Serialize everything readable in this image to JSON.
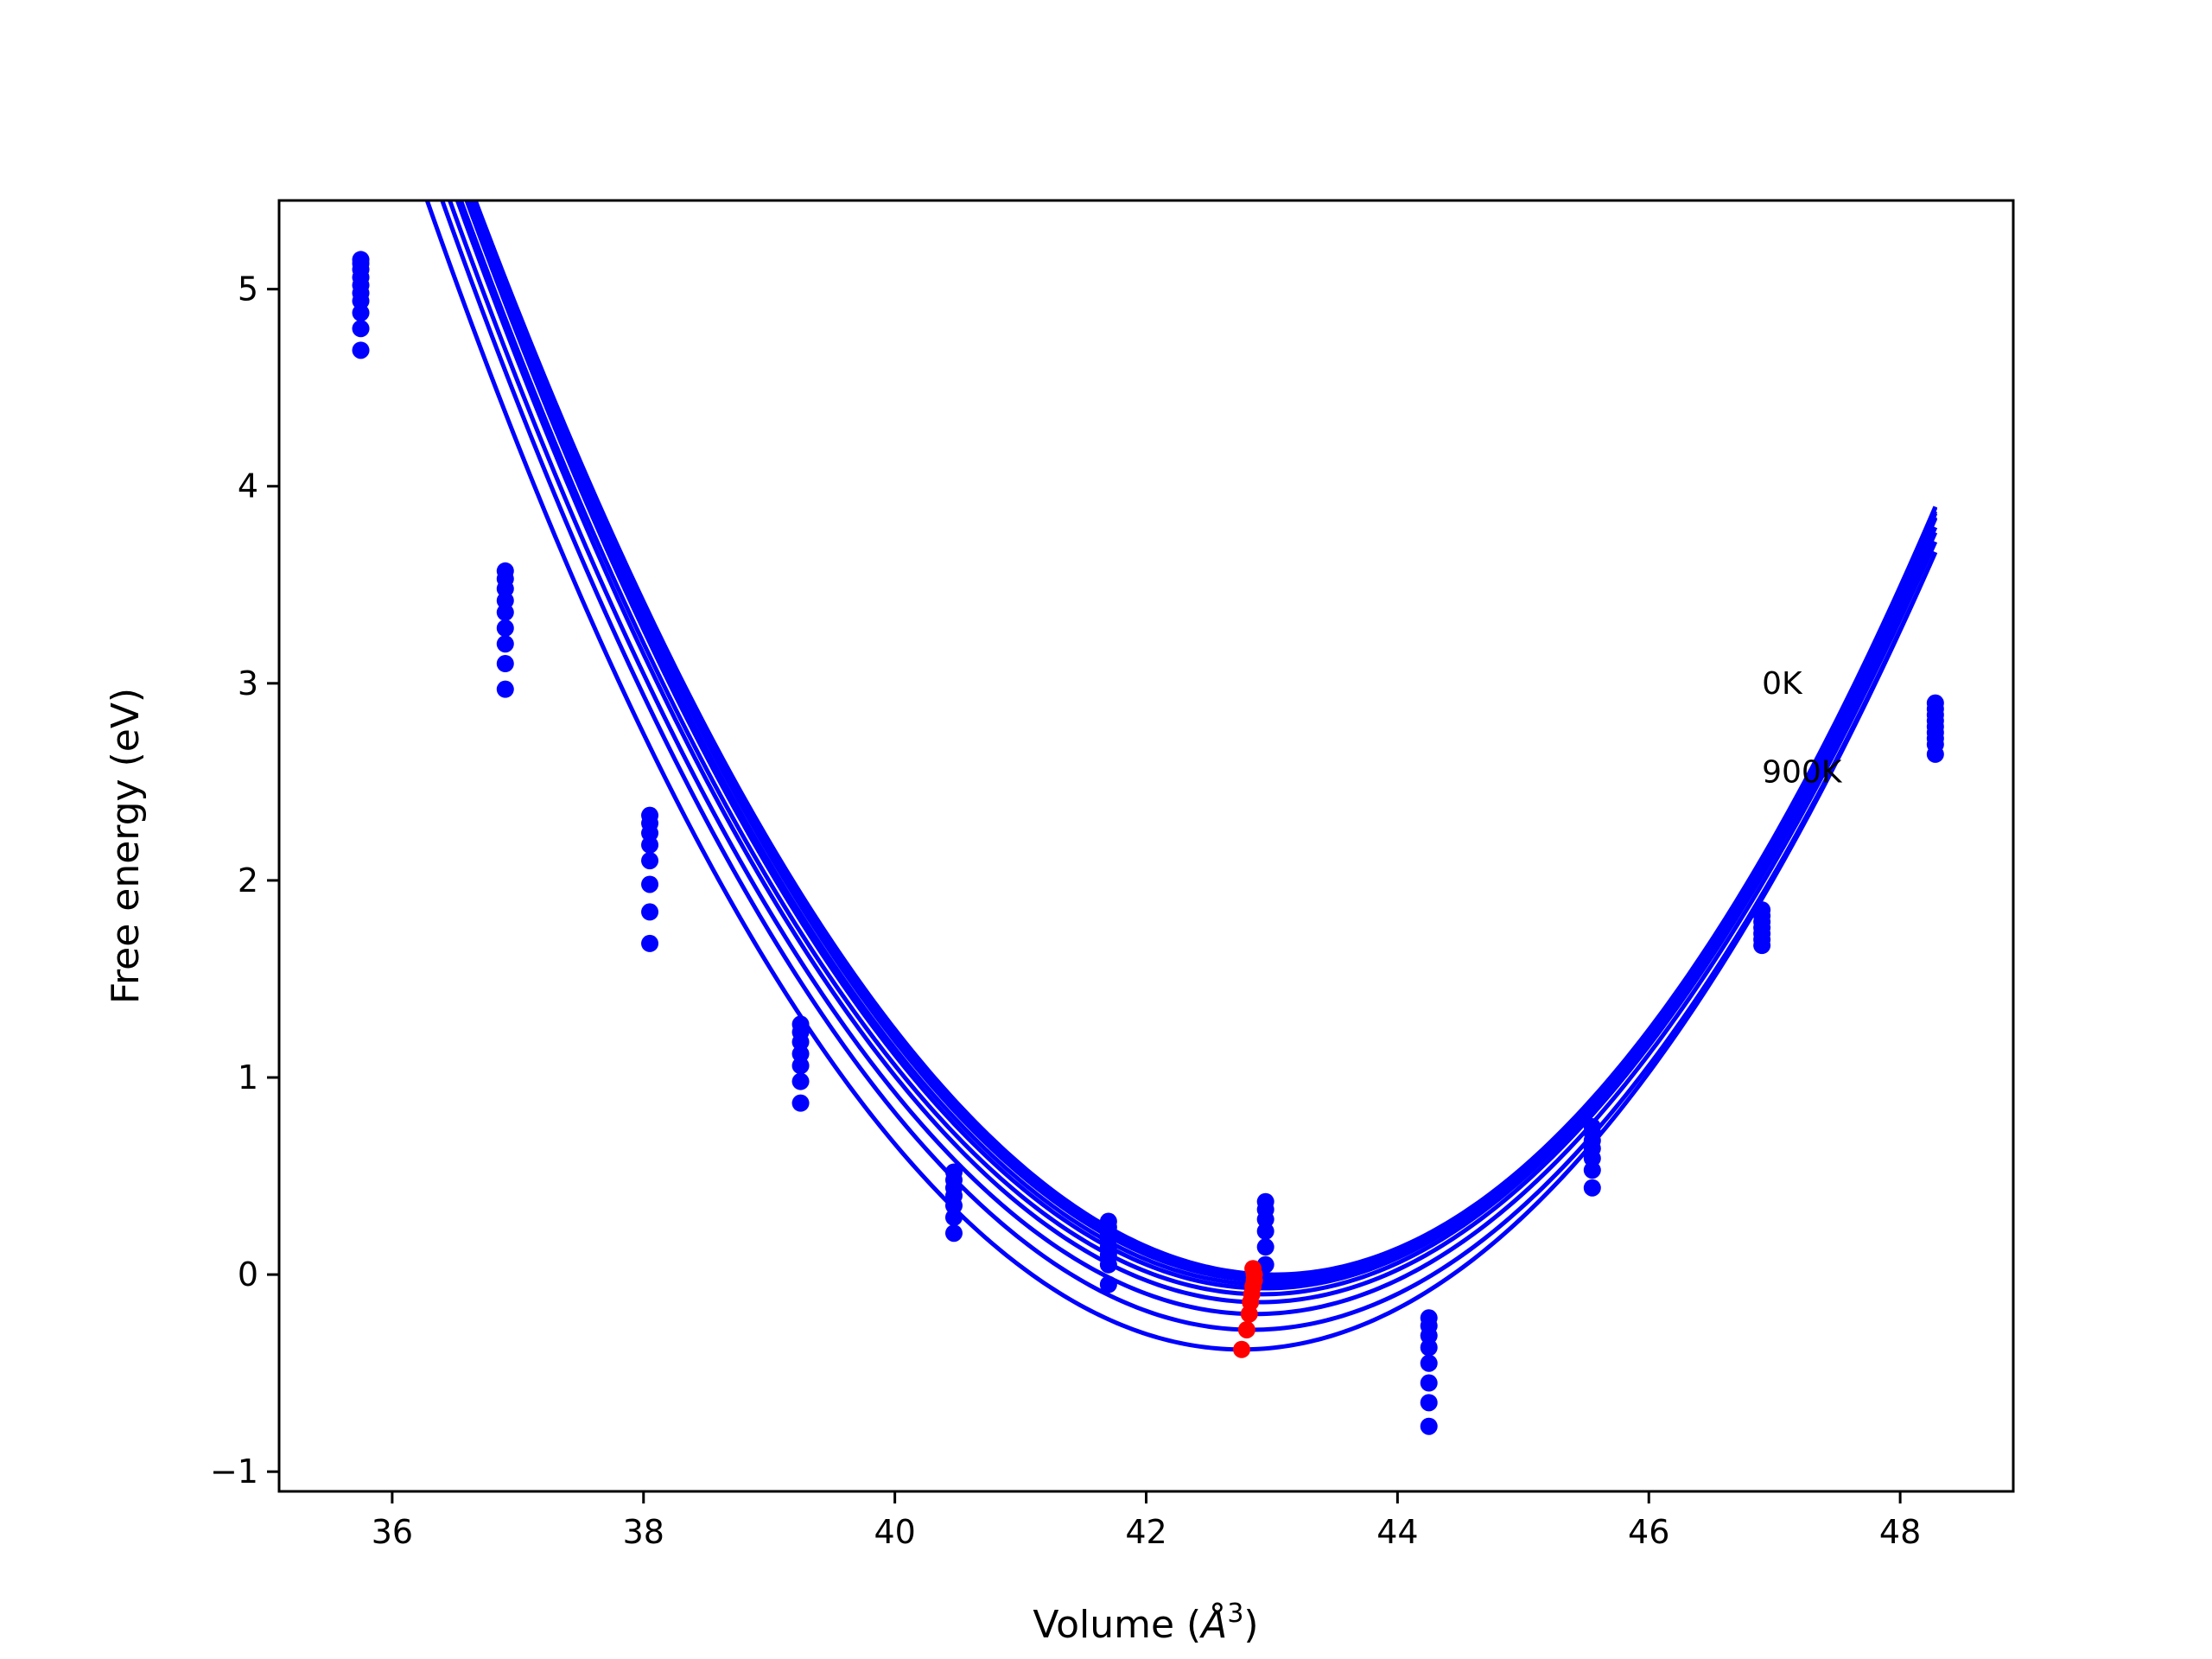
{
  "chart_data": {
    "type": "line",
    "xlabel": "Volume (",
    "xlabel_symbol": "Å",
    "xlabel_power": "3",
    "xlabel_close": ")",
    "ylabel": "Free energy (eV)",
    "xlim": [
      35.1,
      48.9
    ],
    "ylim": [
      -1.1,
      5.45
    ],
    "xticks": [
      36,
      38,
      40,
      42,
      44,
      46,
      48
    ],
    "xtick_labels": [
      "36",
      "38",
      "40",
      "42",
      "44",
      "46",
      "48"
    ],
    "yticks": [
      -1,
      0,
      1,
      2,
      3,
      4,
      5
    ],
    "ytick_labels": [
      "−1",
      "0",
      "1",
      "2",
      "3",
      "4",
      "5"
    ],
    "annotations": [
      {
        "text": "0K",
        "x": 46.9,
        "y": 3.0
      },
      {
        "text": "900K",
        "x": 46.9,
        "y": 2.55
      }
    ],
    "curve_color": "#0000ff",
    "point_color": "#0000ff",
    "minimum_color": "#ff0000",
    "grid": false,
    "volumes": [
      35.75,
      36.9,
      38.05,
      39.25,
      40.47,
      41.7,
      42.95,
      44.25,
      45.55,
      46.9,
      48.28
    ],
    "x_range": [
      35.75,
      48.28
    ],
    "series": [
      {
        "E0": 0.0,
        "V0": 43.02,
        "a": 0.138,
        "b": 0.0005
      },
      {
        "E0": -0.01,
        "V0": 43.0,
        "a": 0.138,
        "b": 0.0004
      },
      {
        "E0": -0.02,
        "V0": 42.99,
        "a": 0.1375,
        "b": 0.0003
      },
      {
        "E0": -0.03,
        "V0": 42.98,
        "a": 0.1375,
        "b": 0.0002
      },
      {
        "E0": -0.05,
        "V0": 42.96,
        "a": 0.137,
        "b": 0.0001
      },
      {
        "E0": -0.07,
        "V0": 42.94,
        "a": 0.137,
        "b": 0.0
      },
      {
        "E0": -0.1,
        "V0": 42.92,
        "a": 0.136,
        "b": -0.0001
      },
      {
        "E0": -0.14,
        "V0": 42.9,
        "a": 0.136,
        "b": -0.0002
      },
      {
        "E0": -0.2,
        "V0": 42.87,
        "a": 0.1355,
        "b": -0.0003
      },
      {
        "E0": -0.28,
        "V0": 42.84,
        "a": 0.1355,
        "b": -0.0004
      },
      {
        "E0": -0.38,
        "V0": 42.76,
        "a": 0.1355,
        "b": -0.0005
      }
    ],
    "extra_points": [
      {
        "x": 35.75,
        "ys": [
          5.15,
          5.13,
          5.1,
          5.06,
          5.02,
          4.98,
          4.94,
          4.88,
          4.8,
          4.69
        ]
      },
      {
        "x": 36.9,
        "ys": [
          3.57,
          3.53,
          3.48,
          3.42,
          3.36,
          3.28,
          3.2,
          3.1,
          2.97
        ]
      },
      {
        "x": 38.05,
        "ys": [
          2.33,
          2.29,
          2.24,
          2.18,
          2.1,
          1.98,
          1.84,
          1.68
        ]
      },
      {
        "x": 39.25,
        "ys": [
          1.27,
          1.23,
          1.18,
          1.12,
          1.06,
          0.98,
          0.87
        ]
      },
      {
        "x": 40.47,
        "ys": [
          0.52,
          0.48,
          0.44,
          0.4,
          0.35,
          0.29,
          0.21
        ]
      },
      {
        "x": 41.7,
        "ys": [
          0.27,
          0.24,
          0.21,
          0.18,
          0.14,
          0.1,
          0.05,
          -0.05
        ]
      },
      {
        "x": 42.95,
        "ys": [
          0.37,
          0.33,
          0.28,
          0.22,
          0.14,
          0.05
        ]
      },
      {
        "x": 44.25,
        "ys": [
          -0.22,
          -0.26,
          -0.31,
          -0.37,
          -0.45,
          -0.55,
          -0.65,
          -0.77
        ]
      },
      {
        "x": 45.55,
        "ys": [
          0.75,
          0.72,
          0.68,
          0.64,
          0.59,
          0.53,
          0.44
        ]
      },
      {
        "x": 46.9,
        "ys": [
          1.85,
          1.82,
          1.79,
          1.76,
          1.73,
          1.7,
          1.67
        ]
      },
      {
        "x": 48.28,
        "ys": [
          2.9,
          2.87,
          2.84,
          2.81,
          2.78,
          2.75,
          2.72,
          2.69,
          2.64
        ]
      }
    ],
    "minimum_points": [
      {
        "x": 42.85,
        "y": 0.03
      },
      {
        "x": 42.86,
        "y": 0.0
      },
      {
        "x": 42.86,
        "y": -0.03
      },
      {
        "x": 42.85,
        "y": -0.06
      },
      {
        "x": 42.84,
        "y": -0.1
      },
      {
        "x": 42.83,
        "y": -0.14
      },
      {
        "x": 42.82,
        "y": -0.2
      },
      {
        "x": 42.8,
        "y": -0.28
      },
      {
        "x": 42.76,
        "y": -0.38
      }
    ]
  }
}
